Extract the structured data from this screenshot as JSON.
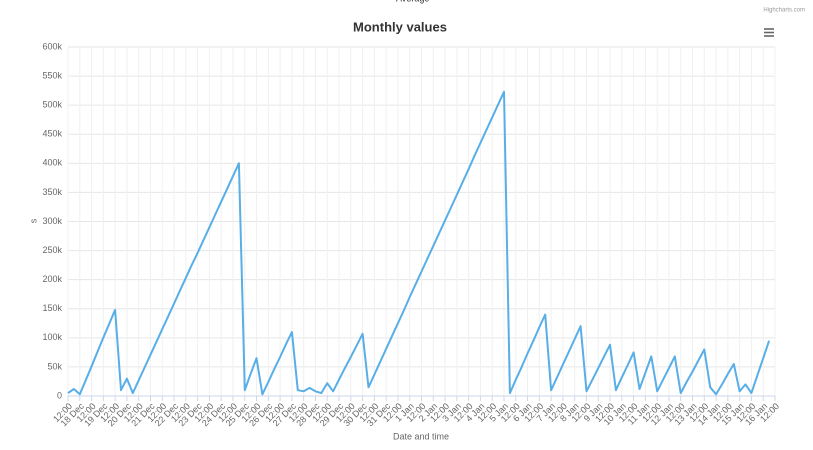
{
  "chart_data": {
    "type": "line",
    "title": "Monthly values",
    "credits": "Highcharts.com",
    "xlabel": "Date and time",
    "ylabel": "s",
    "legend": "top",
    "grid": true,
    "ylim": [
      0,
      600000
    ],
    "yticks": [
      0,
      {
        "value": 50000,
        "label": "50k"
      },
      {
        "value": 100000,
        "label": "100k"
      },
      {
        "value": 150000,
        "label": "150k"
      },
      {
        "value": 200000,
        "label": "200k"
      },
      {
        "value": 250000,
        "label": "250k"
      },
      {
        "value": 300000,
        "label": "300k"
      },
      {
        "value": 350000,
        "label": "350k"
      },
      {
        "value": 400000,
        "label": "400k"
      },
      {
        "value": 450000,
        "label": "450k"
      },
      {
        "value": 500000,
        "label": "500k"
      },
      {
        "value": 550000,
        "label": "550k"
      },
      {
        "value": 600000,
        "label": "600k"
      }
    ],
    "categories": [
      "12:00",
      null,
      "18 Dec",
      null,
      "12:00",
      null,
      "19 Dec",
      null,
      "12:00",
      null,
      "20 Dec",
      null,
      "12:00",
      null,
      "21 Dec",
      null,
      "12:00",
      null,
      "22 Dec",
      null,
      "12:00",
      null,
      "23 Dec",
      null,
      "12:00",
      null,
      "24 Dec",
      null,
      "12:00",
      null,
      "25 Dec",
      null,
      "12:00",
      null,
      "26 Dec",
      null,
      "12:00",
      null,
      "27 Dec",
      null,
      "12:00",
      null,
      "28 Dec",
      null,
      "12:00",
      null,
      "29 Dec",
      null,
      "12:00",
      null,
      "30 Dec",
      null,
      "12:00",
      null,
      "31 Dec",
      null,
      "12:00",
      null,
      "1 Jan",
      null,
      "12:00",
      null,
      "2 Jan",
      null,
      "12:00",
      null,
      "3 Jan",
      null,
      "12:00",
      null,
      "4 Jan",
      null,
      "12:00",
      null,
      "5 Jan",
      null,
      "12:00",
      null,
      "6 Jan",
      null,
      "12:00",
      null,
      "7 Jan",
      null,
      "12:00",
      null,
      "8 Jan",
      null,
      "12:00",
      null,
      "9 Jan",
      null,
      "12:00",
      null,
      "10 Jan",
      null,
      "12:00",
      null,
      "11 Jan",
      null,
      "12:00",
      null,
      "12 Jan",
      null,
      "12:00",
      null,
      "13 Jan",
      null,
      "12:00",
      null,
      "14 Jan",
      null,
      "12:00",
      null,
      "15 Jan",
      null,
      "12:00",
      null,
      "16 Jan",
      null,
      "12:00"
    ],
    "series": [
      {
        "name": "Average",
        "color": "#58aee6",
        "values": [
          5000,
          12000,
          3000,
          27000,
          51000,
          76000,
          100000,
          124000,
          148000,
          10000,
          30000,
          5000,
          27000,
          49000,
          71000,
          93000,
          115000,
          137000,
          159000,
          181000,
          203000,
          225000,
          246000,
          268000,
          290000,
          312000,
          334000,
          356000,
          378000,
          400000,
          10000,
          38000,
          65000,
          3000,
          24000,
          46000,
          67000,
          89000,
          110000,
          10000,
          8000,
          14000,
          8000,
          5000,
          22000,
          8000,
          28000,
          48000,
          67000,
          87000,
          107000,
          15000,
          37000,
          59000,
          81000,
          103000,
          125000,
          147000,
          170000,
          192000,
          214000,
          236000,
          258000,
          280000,
          302000,
          324000,
          346000,
          368000,
          390000,
          413000,
          435000,
          457000,
          479000,
          501000,
          523000,
          5000,
          28000,
          50000,
          73000,
          95000,
          118000,
          140000,
          10000,
          32000,
          54000,
          76000,
          98000,
          120000,
          8000,
          28000,
          48000,
          68000,
          88000,
          10000,
          32000,
          53000,
          75000,
          12000,
          40000,
          68000,
          8000,
          28000,
          48000,
          68000,
          5000,
          24000,
          42000,
          61000,
          80000,
          15000,
          3000,
          20000,
          38000,
          55000,
          8000,
          20000,
          5000,
          35000,
          65000,
          95000,
          null
        ]
      }
    ]
  }
}
